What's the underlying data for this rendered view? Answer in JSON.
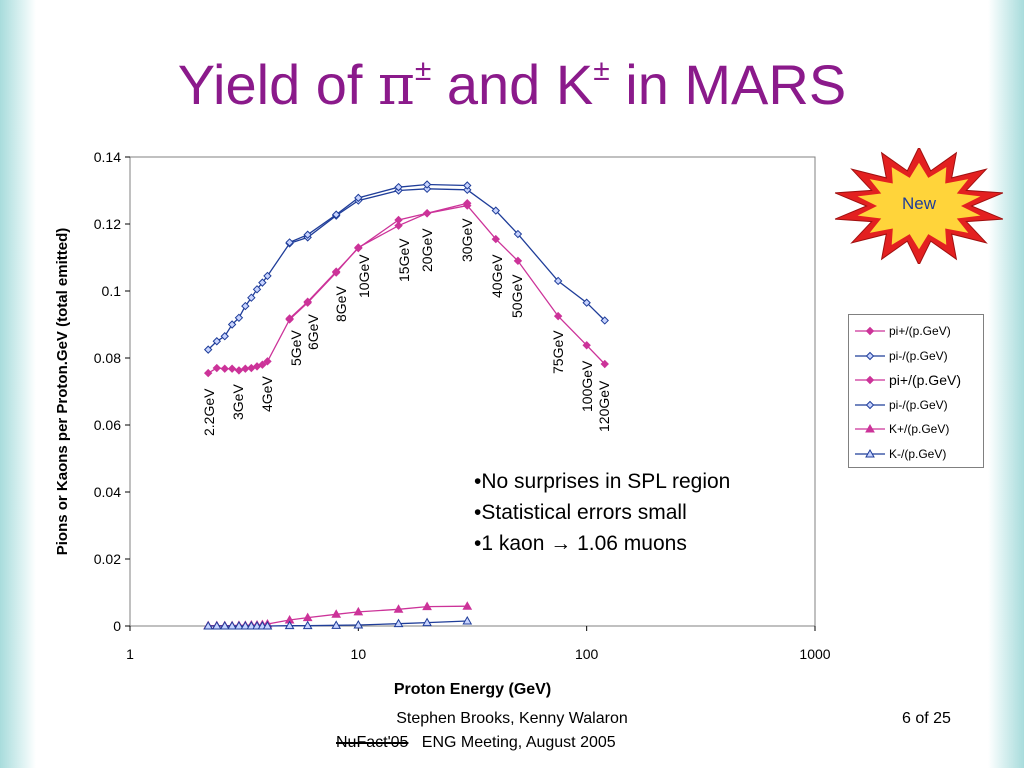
{
  "title": {
    "pre": "Yield of ",
    "pi": "π",
    "sup1": "±",
    "mid": " and K",
    "sup2": "±",
    "post": " in MARS"
  },
  "callout": {
    "label": "New",
    "fill": "#e32020",
    "inner": "#ffd43a"
  },
  "bullets": [
    "No surprises in SPL region",
    "Statistical errors small",
    "1 kaon → 1.06 muons"
  ],
  "footer": {
    "authors": "Stephen Brooks, Kenny Walaron",
    "struck": "NuFact'05",
    "meeting": "ENG Meeting, August 2005",
    "page": "6 of 25"
  },
  "chart_data": {
    "type": "line",
    "xscale": "log",
    "xlabel": "Proton Energy (GeV)",
    "ylabel": "Pions or Kaons per Proton.GeV (total emitted)",
    "xlim": [
      1,
      1000
    ],
    "ylim": [
      0,
      0.14
    ],
    "xticks": [
      "1",
      "10",
      "100",
      "1000"
    ],
    "yticks": [
      "0",
      "0.02",
      "0.04",
      "0.06",
      "0.08",
      "0.1",
      "0.12",
      "0.14"
    ],
    "grid": false,
    "legend_position": "right",
    "series": [
      {
        "name": "pi+/(p.GeV)",
        "color": "#cc3399",
        "marker": "diamond",
        "x": [
          2.2,
          2.4,
          2.6,
          2.8,
          3,
          3.2,
          3.4,
          3.6,
          3.8,
          4,
          5,
          6,
          8,
          10,
          15,
          20,
          30,
          40,
          50,
          75,
          100,
          120
        ],
        "y": [
          0.0755,
          0.077,
          0.0768,
          0.0768,
          0.0763,
          0.0768,
          0.077,
          0.0775,
          0.078,
          0.079,
          0.0915,
          0.0965,
          0.1055,
          0.113,
          0.1195,
          0.1232,
          0.1255,
          0.1155,
          0.109,
          0.0925,
          0.0838,
          0.0782
        ]
      },
      {
        "name": "pi-/(p.GeV)",
        "color": "#1f3d99",
        "marker": "diamond",
        "x": [
          2.2,
          2.4,
          2.6,
          2.8,
          3,
          3.2,
          3.4,
          3.6,
          3.8,
          4,
          5,
          6,
          8,
          10,
          15,
          20,
          30,
          40,
          50,
          75,
          100,
          120
        ],
        "y": [
          0.0825,
          0.085,
          0.0865,
          0.09,
          0.092,
          0.0955,
          0.098,
          0.1005,
          0.1025,
          0.1045,
          0.1142,
          0.116,
          0.1225,
          0.127,
          0.13,
          0.1305,
          0.1302,
          0.124,
          0.117,
          0.103,
          0.0965,
          0.0912
        ]
      },
      {
        "name": "pi+/(p.GeV)",
        "color": "#cc3399",
        "marker": "diamond",
        "x": [
          5,
          6,
          8,
          10,
          15,
          20,
          30
        ],
        "y": [
          0.0918,
          0.0968,
          0.1058,
          0.1128,
          0.1212,
          0.1232,
          0.1262
        ]
      },
      {
        "name": "pi-/(p.GeV)",
        "color": "#1f3d99",
        "marker": "diamond",
        "x": [
          5,
          6,
          8,
          10,
          15,
          20,
          30
        ],
        "y": [
          0.1145,
          0.1168,
          0.1228,
          0.1278,
          0.131,
          0.1318,
          0.1315
        ]
      },
      {
        "name": "K+/(p.GeV)",
        "color": "#cc3399",
        "marker": "triangle",
        "x": [
          2.2,
          2.4,
          2.6,
          2.8,
          3,
          3.2,
          3.4,
          3.6,
          3.8,
          4,
          5,
          6,
          8,
          10,
          15,
          20,
          30
        ],
        "y": [
          0.0001,
          0.0001,
          0.0001,
          0.0001,
          0.0002,
          0.0002,
          0.0003,
          0.0003,
          0.0004,
          0.0006,
          0.0018,
          0.0025,
          0.0035,
          0.0042,
          0.005,
          0.0058,
          0.0059
        ]
      },
      {
        "name": "K-/(p.GeV)",
        "color": "#1f3d99",
        "marker": "triangle",
        "x": [
          2.2,
          2.4,
          2.6,
          2.8,
          3,
          3.2,
          3.4,
          3.6,
          3.8,
          4,
          5,
          6,
          8,
          10,
          15,
          20,
          30
        ],
        "y": [
          0,
          0,
          0,
          0,
          0,
          0,
          0,
          0,
          0,
          0,
          0.0001,
          0.0001,
          0.0002,
          0.0003,
          0.0007,
          0.001,
          0.0015
        ]
      }
    ],
    "annotations": [
      {
        "text": "2.2GeV",
        "x": 2.2
      },
      {
        "text": "3GeV",
        "x": 3
      },
      {
        "text": "4GeV",
        "x": 4
      },
      {
        "text": "5GeV",
        "x": 5
      },
      {
        "text": "6GeV",
        "x": 6
      },
      {
        "text": "8GeV",
        "x": 8
      },
      {
        "text": "10GeV",
        "x": 10
      },
      {
        "text": "15GeV",
        "x": 15
      },
      {
        "text": "20GeV",
        "x": 20
      },
      {
        "text": "30GeV",
        "x": 30
      },
      {
        "text": "40GeV",
        "x": 40
      },
      {
        "text": "50GeV",
        "x": 50
      },
      {
        "text": "75GeV",
        "x": 75
      },
      {
        "text": "100GeV",
        "x": 100
      },
      {
        "text": "120GeV",
        "x": 120
      }
    ]
  }
}
